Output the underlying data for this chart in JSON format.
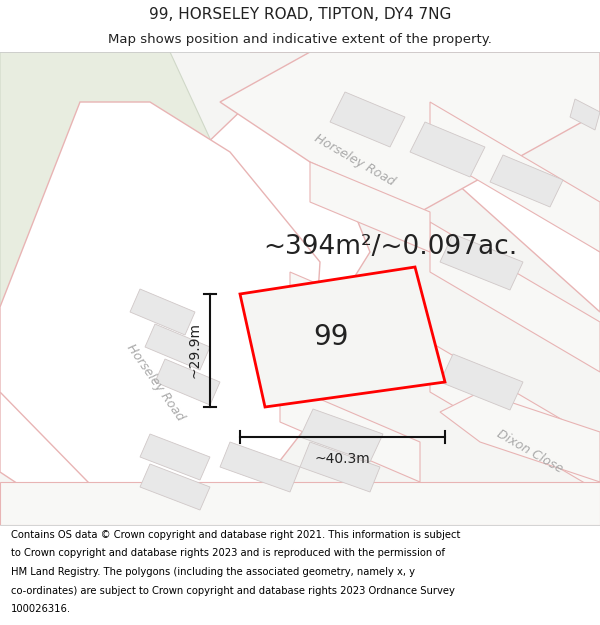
{
  "title_line1": "99, HORSELEY ROAD, TIPTON, DY4 7NG",
  "title_line2": "Map shows position and indicative extent of the property.",
  "area_text": "~394m²/~0.097ac.",
  "label_99": "99",
  "dim_height": "~29.9m",
  "dim_width": "~40.3m",
  "road_label_top": "Horseley Road",
  "road_label_left": "Horseley Road",
  "dixon_label": "Dixon Close",
  "footer_text": "Contains OS data © Crown copyright and database right 2021. This information is subject to Crown copyright and database rights 2023 and is reproduced with the permission of HM Land Registry. The polygons (including the associated geometry, namely x, y co-ordinates) are subject to Crown copyright and database rights 2023 Ordnance Survey 100026316.",
  "map_bg": "#f5f5f3",
  "road_fill": "#ffffff",
  "road_edge": "#e8b4b4",
  "road_edge_lw": 1.0,
  "block_fill": "#e8e8e8",
  "block_edge": "#d0c8c8",
  "green_fill": "#e8ede0",
  "green_edge": "#d0d8c8",
  "red_color": "#ff0000",
  "dim_color": "#111111",
  "text_dark": "#222222",
  "text_road": "#aaaaaa",
  "white": "#ffffff",
  "title_fs": 11,
  "sub_fs": 9.5,
  "area_fs": 19,
  "num_fs": 20,
  "dim_fs": 10,
  "road_fs": 9,
  "dixon_fs": 9,
  "footer_fs": 7.2
}
